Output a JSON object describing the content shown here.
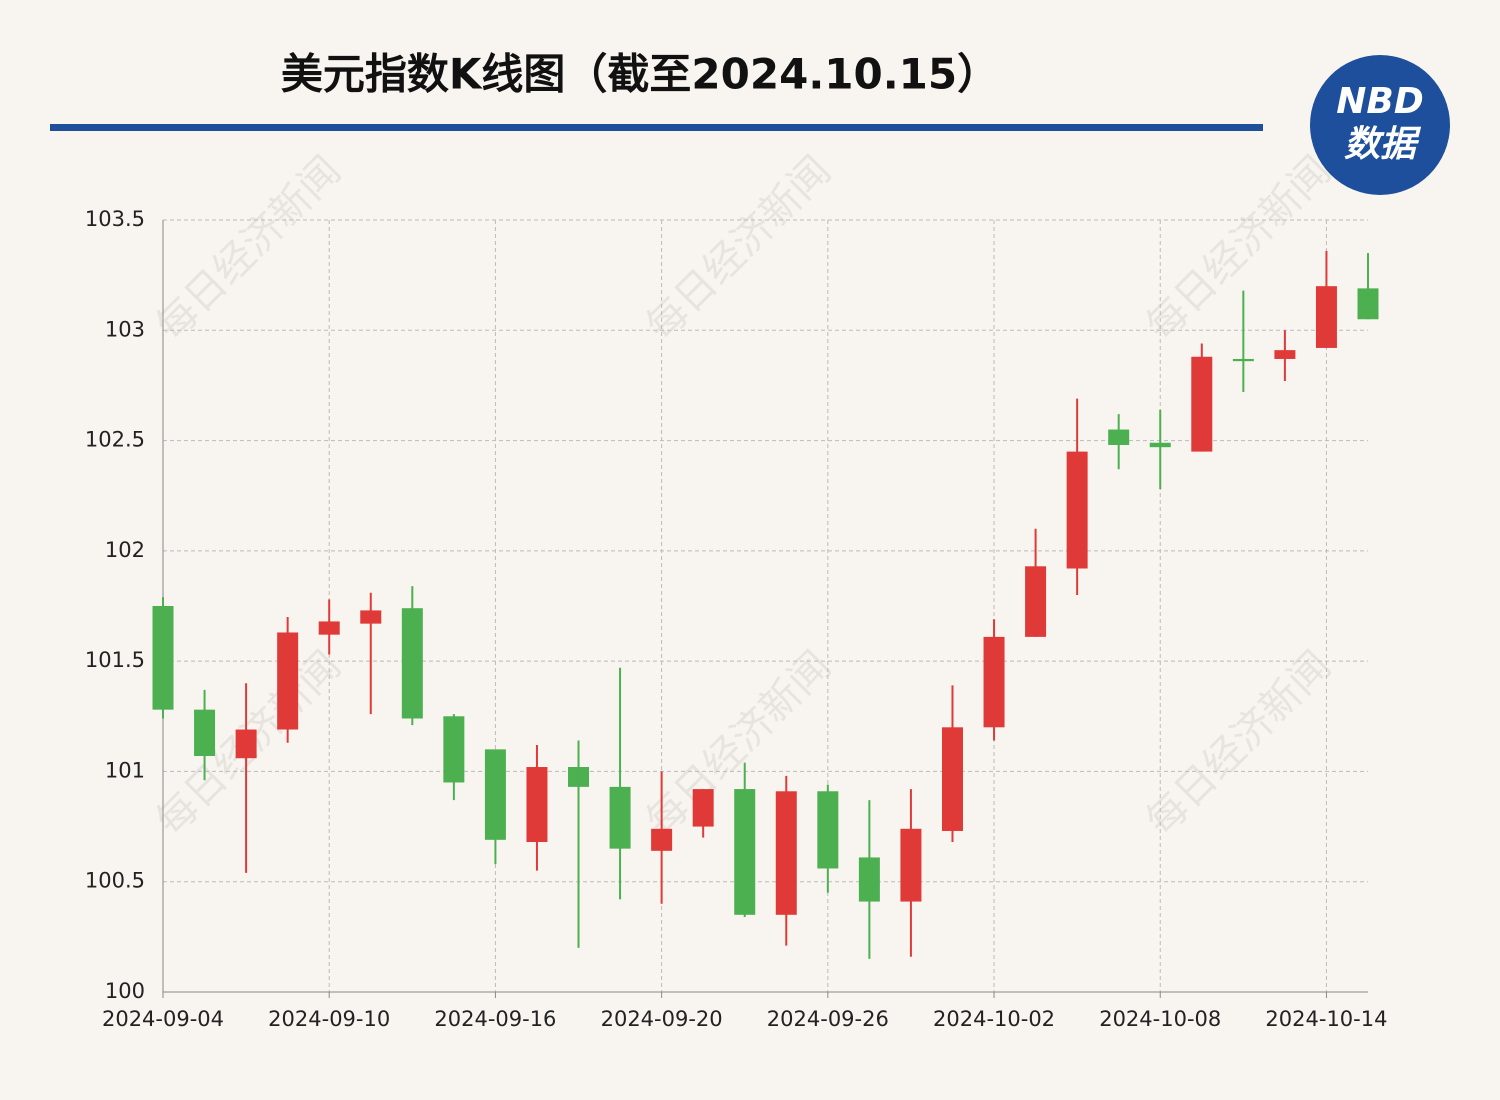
{
  "chart_data": {
    "type": "candlestick",
    "title": "美元指数K线图（截至2024.10.15）",
    "logo": {
      "top": "NBD",
      "bottom": "数据"
    },
    "watermark": "每日经济新闻",
    "categories": [
      "2024-09-04",
      null,
      null,
      null,
      "2024-09-10",
      null,
      null,
      null,
      "2024-09-16",
      null,
      null,
      null,
      "2024-09-20",
      null,
      null,
      null,
      "2024-09-26",
      null,
      null,
      null,
      "2024-10-02",
      null,
      null,
      null,
      "2024-10-08",
      null,
      null,
      null,
      "2024-10-14",
      null
    ],
    "open": [
      101.75,
      101.28,
      101.06,
      101.19,
      101.62,
      101.67,
      101.74,
      101.25,
      101.1,
      100.68,
      101.02,
      100.93,
      100.64,
      100.75,
      100.92,
      100.35,
      100.91,
      100.61,
      100.41,
      100.73,
      101.2,
      101.61,
      101.92,
      102.55,
      102.49,
      102.45,
      102.87,
      102.87,
      102.92,
      103.19
    ],
    "high": [
      101.79,
      101.37,
      101.4,
      101.7,
      101.78,
      101.81,
      101.84,
      101.26,
      101.1,
      101.12,
      101.14,
      101.47,
      101.0,
      100.92,
      101.04,
      100.98,
      100.94,
      100.87,
      100.92,
      101.39,
      101.69,
      102.1,
      102.69,
      102.62,
      102.64,
      102.94,
      103.18,
      103.0,
      103.36,
      103.35
    ],
    "low": [
      101.24,
      100.96,
      100.54,
      101.13,
      101.53,
      101.26,
      101.21,
      100.87,
      100.58,
      100.55,
      100.2,
      100.42,
      100.4,
      100.7,
      100.34,
      100.21,
      100.45,
      100.15,
      100.16,
      100.68,
      101.14,
      101.61,
      101.8,
      102.37,
      102.28,
      102.45,
      102.72,
      102.77,
      102.92,
      103.05
    ],
    "close": [
      101.28,
      101.07,
      101.19,
      101.63,
      101.68,
      101.73,
      101.24,
      100.95,
      100.69,
      101.02,
      100.93,
      100.65,
      100.74,
      100.92,
      100.35,
      100.91,
      100.56,
      100.41,
      100.74,
      101.2,
      101.61,
      101.93,
      102.45,
      102.48,
      102.47,
      102.88,
      102.86,
      102.91,
      103.2,
      103.05
    ],
    "up_color": "#e03a38",
    "down_color": "#4caf50",
    "ylim": [
      100,
      103.5
    ],
    "yticks": [
      100,
      100.5,
      101,
      101.5,
      102,
      102.5,
      103,
      103.5
    ],
    "grid": true
  }
}
